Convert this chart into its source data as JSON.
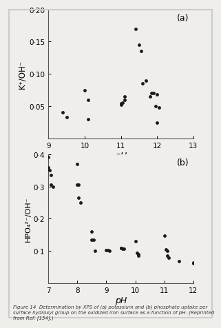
{
  "plot_a": {
    "x": [
      9.4,
      9.5,
      10.0,
      10.1,
      10.1,
      11.0,
      11.0,
      11.05,
      11.1,
      11.1,
      11.4,
      11.5,
      11.55,
      11.6,
      11.7,
      11.8,
      11.85,
      11.9,
      11.95,
      12.0,
      12.0,
      12.05
    ],
    "y": [
      0.04,
      0.033,
      0.075,
      0.06,
      0.03,
      0.052,
      0.054,
      0.055,
      0.06,
      0.065,
      0.17,
      0.145,
      0.135,
      0.085,
      0.09,
      0.065,
      0.07,
      0.07,
      0.05,
      0.025,
      0.068,
      0.048
    ],
    "xlabel": "pH",
    "ylabel": "K⁺/OH⁻",
    "xlim": [
      9,
      13
    ],
    "ylim": [
      0,
      0.2
    ],
    "yticks": [
      0.05,
      0.1,
      0.15,
      0.2
    ],
    "ytick_labels": [
      "0·05",
      "0·10",
      "0·15",
      "0·20"
    ],
    "xticks": [
      9,
      10,
      11,
      12,
      13
    ],
    "xtick_labels": [
      "9",
      "10",
      "11",
      "12",
      "13"
    ],
    "label": "(a)"
  },
  "plot_b": {
    "x": [
      7.0,
      7.0,
      7.0,
      7.05,
      7.1,
      7.1,
      7.15,
      8.0,
      8.0,
      8.05,
      8.05,
      8.1,
      8.5,
      8.5,
      8.55,
      8.6,
      9.0,
      9.05,
      9.1,
      9.5,
      9.5,
      9.55,
      9.6,
      10.0,
      10.05,
      10.1,
      10.1,
      11.0,
      11.05,
      11.1,
      11.1,
      11.15,
      11.5,
      12.0,
      12.0,
      12.05
    ],
    "y": [
      0.39,
      0.36,
      0.355,
      0.35,
      0.335,
      0.305,
      0.3,
      0.37,
      0.305,
      0.305,
      0.265,
      0.25,
      0.16,
      0.135,
      0.135,
      0.1,
      0.102,
      0.102,
      0.1,
      0.11,
      0.11,
      0.108,
      0.108,
      0.13,
      0.095,
      0.09,
      0.085,
      0.148,
      0.105,
      0.1,
      0.085,
      0.08,
      0.068,
      0.065,
      0.062,
      0.06
    ],
    "xlabel": "pH",
    "ylabel": "HPO₄²⁻/OH⁻",
    "xlim": [
      7,
      12
    ],
    "ylim": [
      0,
      0.4
    ],
    "yticks": [
      0.1,
      0.2,
      0.3,
      0.4
    ],
    "ytick_labels": [
      "0·1",
      "0·2",
      "0·3",
      "0·4"
    ],
    "xticks": [
      7,
      8,
      9,
      10,
      11,
      12
    ],
    "xtick_labels": [
      "7",
      "8",
      "9",
      "10",
      "11",
      "12"
    ],
    "label": "(b)"
  },
  "marker": "o",
  "markersize": 3.5,
  "markercolor": "#1a1a1a",
  "bg_color": "#f0eeea",
  "frame_color": "#cccccc",
  "caption": "Figure 14  Determination by XPS of (a) potassium and (b) phosphate uptake per surface hydroxyl group on the oxidized iron surface as a function of pH. (Reprinted from Ref. [154].)"
}
